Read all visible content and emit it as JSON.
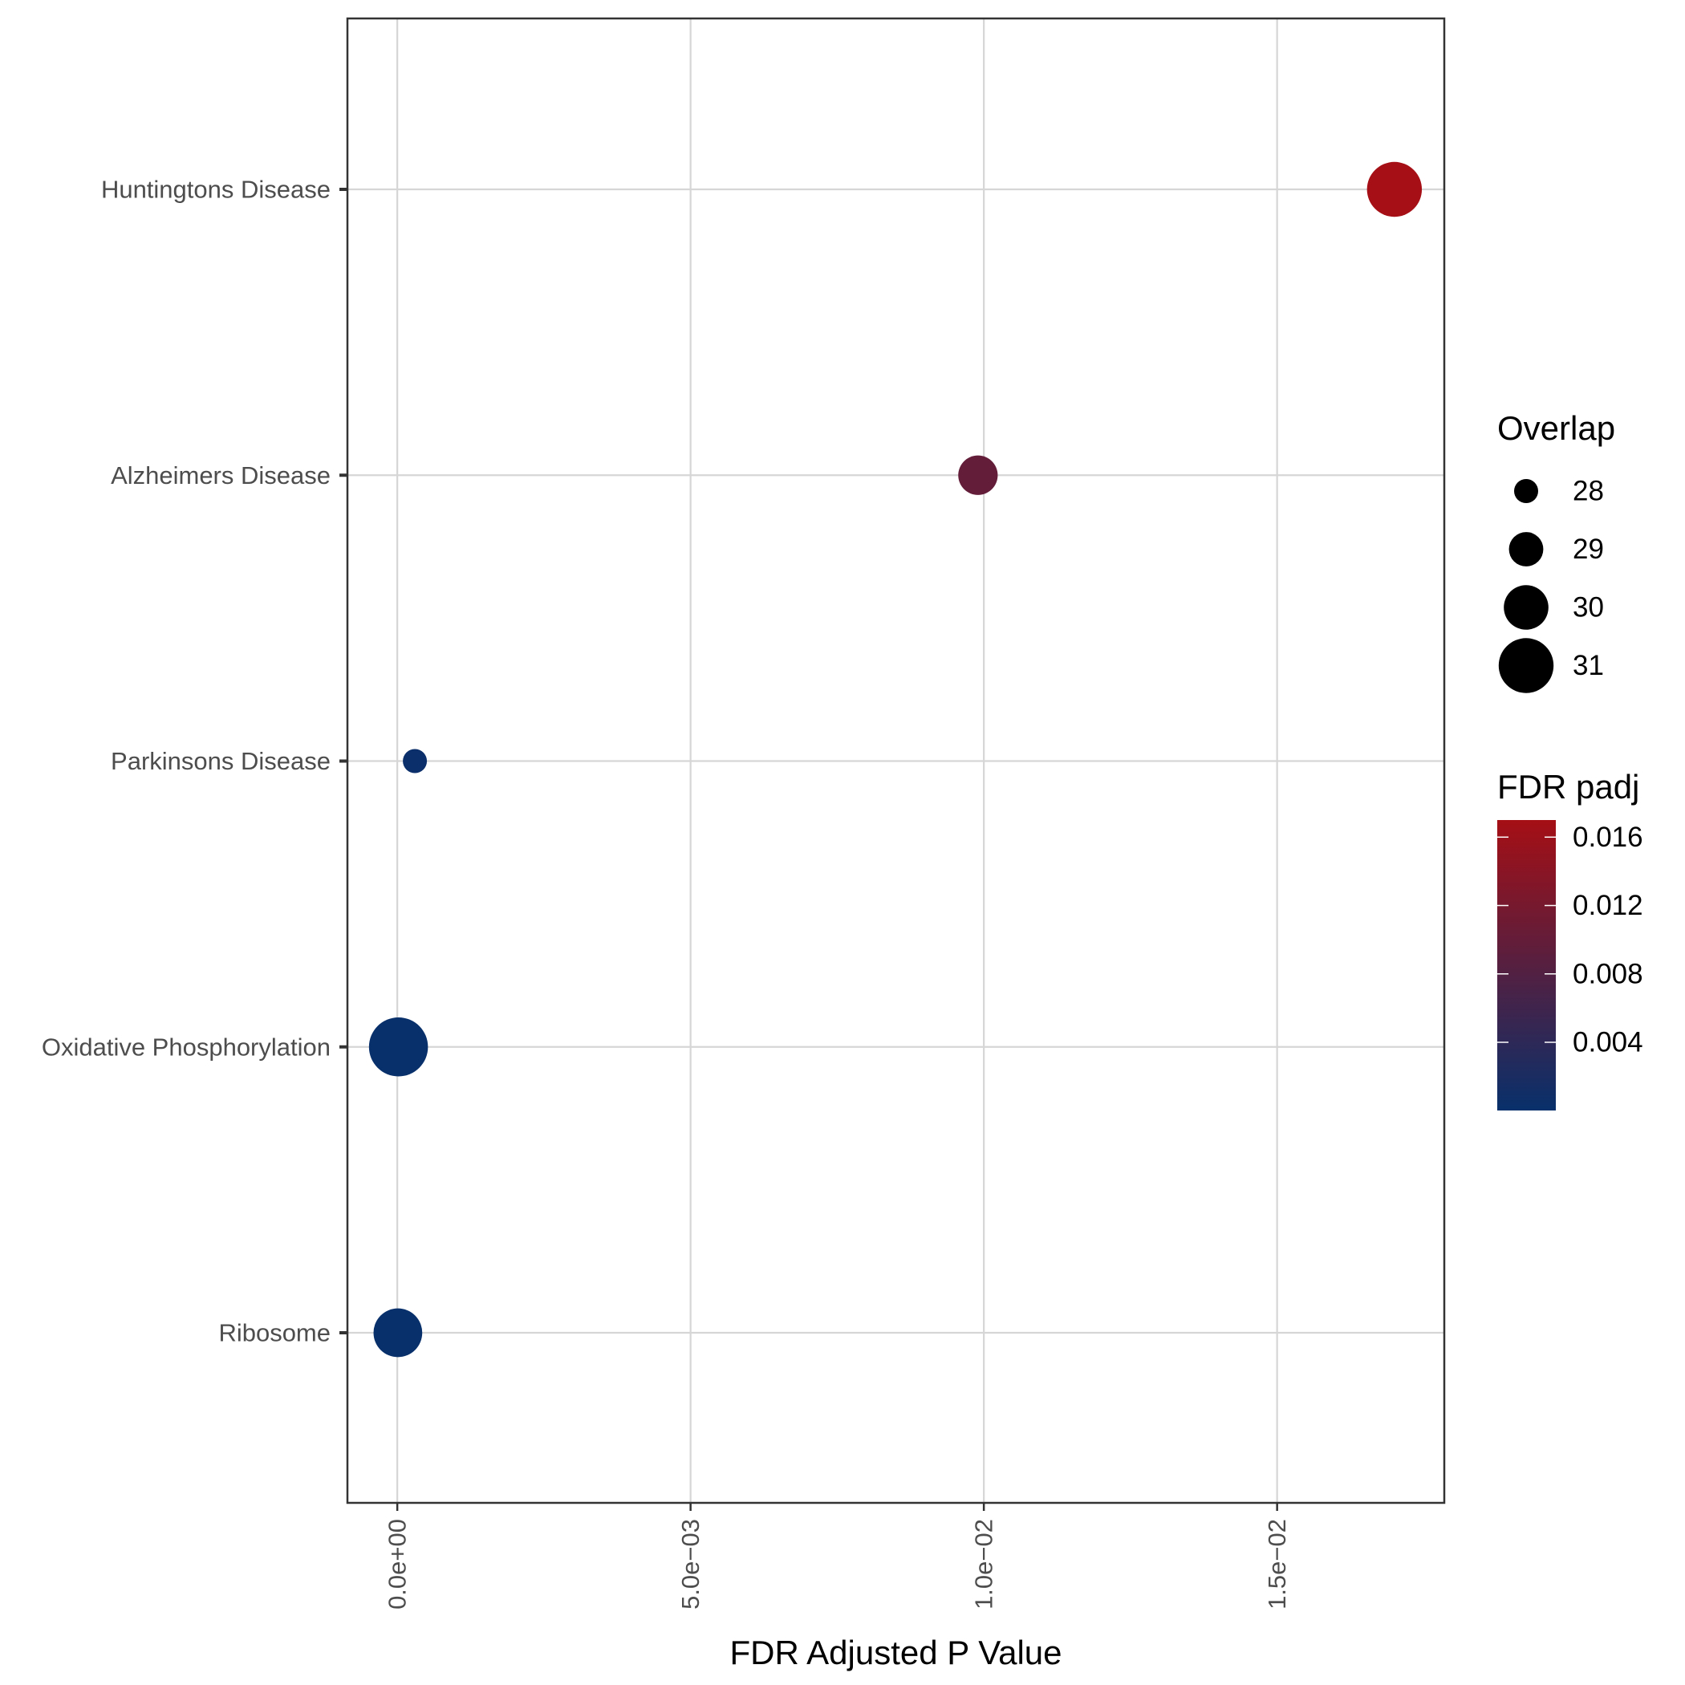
{
  "chart_data": {
    "type": "scatter",
    "xlabel": "FDR Adjusted P Value",
    "ylabel": "",
    "xlim": [
      -0.00085,
      0.01785
    ],
    "x_ticks": [
      0.0,
      0.005,
      0.01,
      0.015
    ],
    "x_tick_labels": [
      "0.0e+00",
      "5.0e−03",
      "1.0e−02",
      "1.5e−02"
    ],
    "categories": [
      "Ribosome",
      "Oxidative Phosphorylation",
      "Parkinsons Disease",
      "Alzheimers Disease",
      "Huntingtons Disease"
    ],
    "points": [
      {
        "pathway": "Huntingtons Disease",
        "padj": 0.017,
        "overlap": 31
      },
      {
        "pathway": "Alzheimers Disease",
        "padj": 0.0099,
        "overlap": 29.5
      },
      {
        "pathway": "Parkinsons Disease",
        "padj": 0.0003,
        "overlap": 28
      },
      {
        "pathway": "Oxidative Phosphorylation",
        "padj": 2e-05,
        "overlap": 31.4
      },
      {
        "pathway": "Ribosome",
        "padj": 1e-05,
        "overlap": 30.4
      }
    ],
    "grid": true,
    "legend": {
      "size": {
        "title": "Overlap",
        "values": [
          28,
          29,
          30,
          31
        ]
      },
      "color": {
        "title": "FDR padj",
        "ticks": [
          0.004,
          0.008,
          0.012,
          0.016
        ],
        "tick_labels": [
          "0.004",
          "0.008",
          "0.012",
          "0.016"
        ],
        "range": [
          1e-05,
          0.017
        ],
        "low_color": "#08306b",
        "high_color": "#a50f15"
      },
      "placement": "right"
    }
  }
}
